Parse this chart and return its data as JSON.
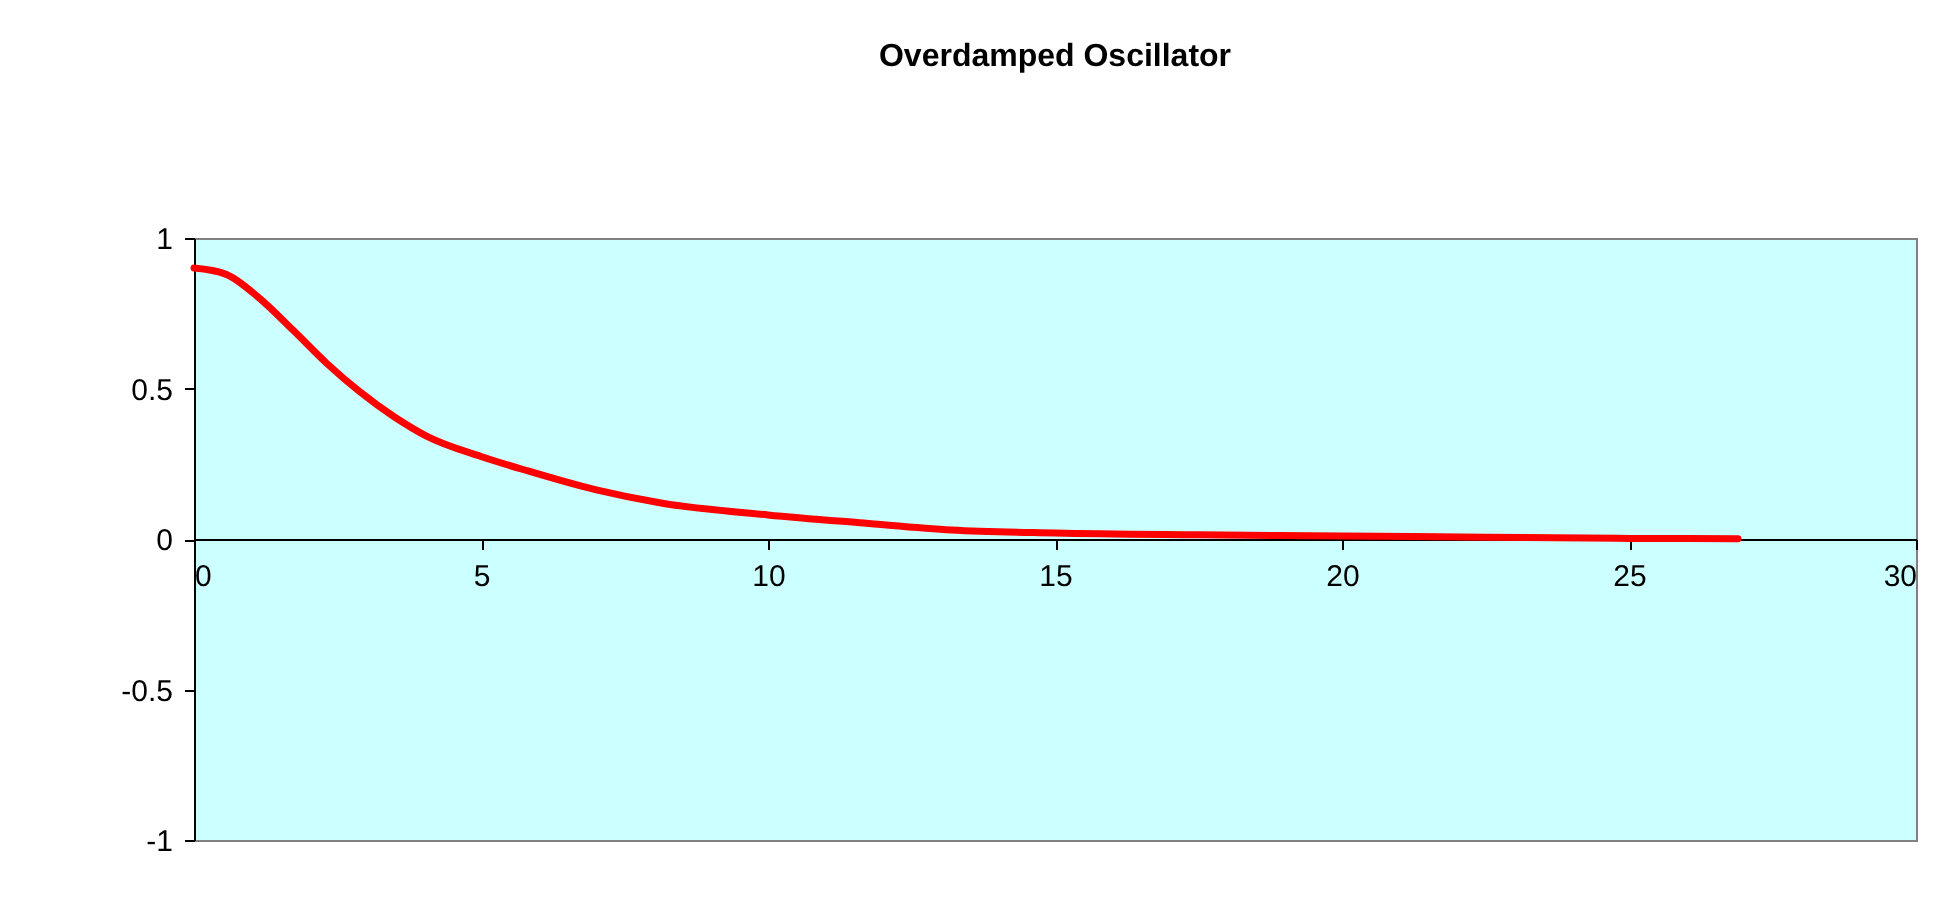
{
  "chart_data": {
    "type": "line",
    "title": "Overdamped Oscillator",
    "x": [
      0,
      0.55,
      1.14,
      1.72,
      2.31,
      2.89,
      3.48,
      4.06,
      5,
      5.82,
      6.99,
      8.16,
      10,
      11.67,
      13.2,
      15,
      17.5,
      20,
      22.5,
      25,
      26.9
    ],
    "series": [
      {
        "color": "#ff0000",
        "values": [
          0.9,
          0.88,
          0.8,
          0.695,
          0.584,
          0.489,
          0.407,
          0.341,
          0.274,
          0.226,
          0.164,
          0.119,
          0.08,
          0.053,
          0.03,
          0.02,
          0.014,
          0.01,
          0.006,
          0.002,
          0.001
        ]
      }
    ],
    "xlim": [
      0,
      30
    ],
    "xticks": [
      0,
      5,
      10,
      15,
      20,
      25,
      30
    ],
    "ylim": [
      -1,
      1
    ],
    "yticks": [
      -1,
      -0.5,
      0,
      0.5,
      1
    ],
    "grid": false,
    "legend": false,
    "marker": "none",
    "line_style": "solid"
  }
}
